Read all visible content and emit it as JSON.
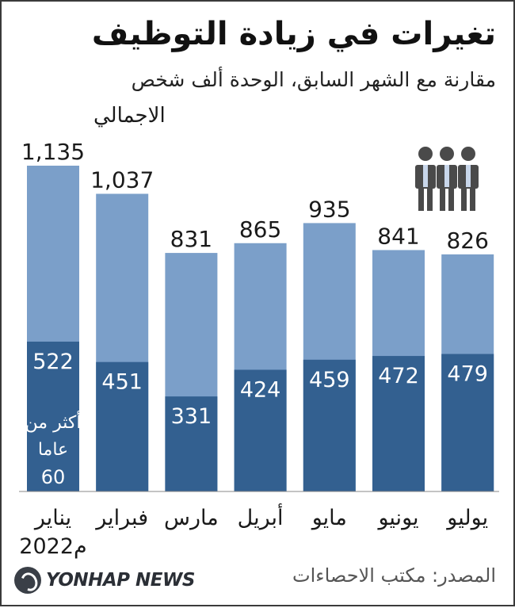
{
  "title": "تغيرات في زيادة التوظيف",
  "subtitle": "مقارنة مع الشهر السابق، الوحدة ألف شخص",
  "source": "المصدر: مكتب الاحصاءات",
  "logo_text": "YONHAP NEWS",
  "year_label": "2022م",
  "colors": {
    "total": "#7b9fc9",
    "long_term": "#336090",
    "text_light": "#ffffff"
  },
  "chart_data": {
    "type": "bar",
    "categories": [
      "يناير",
      "فبراير",
      "مارس",
      "أبريل",
      "مايو",
      "يونيو",
      "يوليو"
    ],
    "series": [
      {
        "name": "الاجمالي",
        "values": [
          1135,
          1037,
          831,
          865,
          935,
          841,
          826
        ]
      },
      {
        "name": "أكثر من عاما 60",
        "values": [
          522,
          451,
          331,
          424,
          459,
          472,
          479
        ]
      }
    ],
    "value_labels": {
      "total": [
        "1,135",
        "1,037",
        "831",
        "865",
        "935",
        "841",
        "826"
      ],
      "long_term": [
        "522",
        "451",
        "331",
        "424",
        "459",
        "472",
        "479"
      ]
    },
    "legend_total": "الاجمالي",
    "legend_long_term_lines": [
      "أكثر من",
      "عاما",
      "60"
    ]
  }
}
